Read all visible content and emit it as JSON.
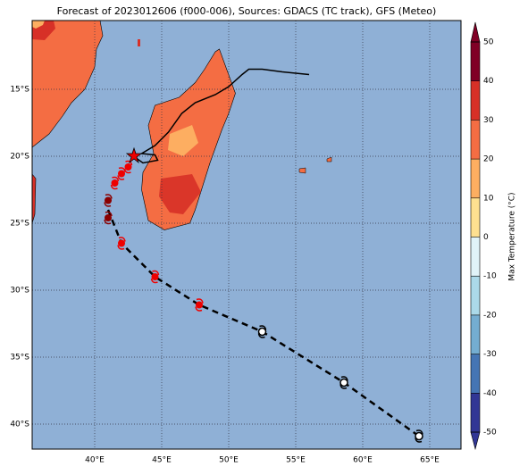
{
  "title": "Forecast of 2023012606 (f000-006), Sources: GDACS (TC track), GFS (Meteo)",
  "map": {
    "lat_labels": [
      "15°S",
      "20°S",
      "25°S",
      "30°S",
      "35°S",
      "40°S"
    ],
    "lon_labels": [
      "40°E",
      "45°E",
      "50°E",
      "55°E",
      "60°E",
      "65°E"
    ]
  },
  "colorbar": {
    "label": "Max Temperature (°C)",
    "ticks": [
      50,
      40,
      30,
      20,
      10,
      0,
      -10,
      -20,
      -30,
      -40,
      -50
    ],
    "colors": [
      "#800026",
      "#d73027",
      "#f46d43",
      "#fdae61",
      "#fee090",
      "#e0f3f8",
      "#abd9e9",
      "#74add1",
      "#4575b4",
      "#313695"
    ]
  }
}
